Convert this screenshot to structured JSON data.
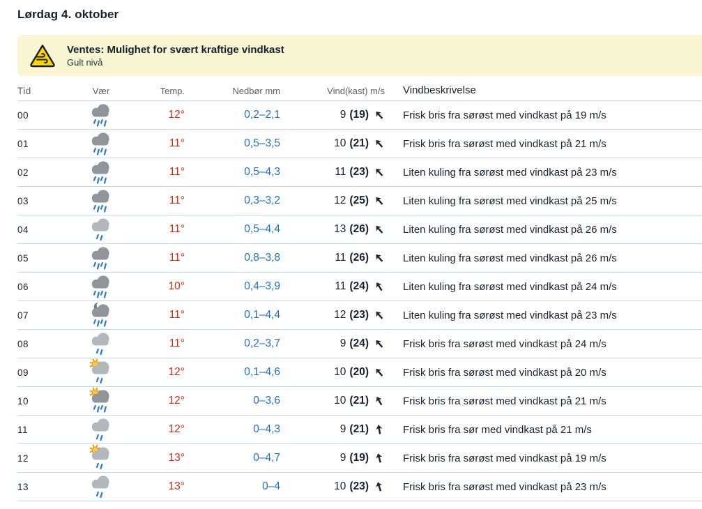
{
  "page": {
    "title": "Lørdag 4. oktober"
  },
  "warning": {
    "title": "Ventes: Mulighet for svært kraftige vindkast",
    "level": "Gult nivå",
    "icon": "wind-warning-icon",
    "colors": {
      "background": "#f9f6d3",
      "triangle": "#ffd500"
    }
  },
  "table": {
    "headers": {
      "time": "Tid",
      "weather": "Vær",
      "temp": "Temp.",
      "precip": "Nedbør mm",
      "wind": "Vind(kast) m/s",
      "desc": "Vindbeskrivelse"
    },
    "rows": [
      {
        "time": "00",
        "icon": {
          "name": "rain-cloud-icon",
          "sun": false,
          "moon": false,
          "shade": "dark",
          "rain": "heavy"
        },
        "temp": "12°",
        "precip": "0,2–2,1",
        "wind": "9",
        "gust": "(19)",
        "arrow_deg": -42,
        "desc": "Frisk bris fra sørøst med vindkast på 19 m/s"
      },
      {
        "time": "01",
        "icon": {
          "name": "rain-cloud-icon",
          "sun": false,
          "moon": false,
          "shade": "dark",
          "rain": "heavy"
        },
        "temp": "11°",
        "precip": "0,5–3,5",
        "wind": "10",
        "gust": "(21)",
        "arrow_deg": -42,
        "desc": "Frisk bris fra sørøst med vindkast på 21 m/s"
      },
      {
        "time": "02",
        "icon": {
          "name": "rain-cloud-icon",
          "sun": false,
          "moon": false,
          "shade": "dark",
          "rain": "heavy"
        },
        "temp": "11°",
        "precip": "0,5–4,3",
        "wind": "11",
        "gust": "(23)",
        "arrow_deg": -42,
        "desc": "Liten kuling fra sørøst med vindkast på 23 m/s"
      },
      {
        "time": "03",
        "icon": {
          "name": "rain-cloud-icon",
          "sun": false,
          "moon": false,
          "shade": "dark",
          "rain": "heavy"
        },
        "temp": "11°",
        "precip": "0,3–3,2",
        "wind": "12",
        "gust": "(25)",
        "arrow_deg": -42,
        "desc": "Liten kuling fra sørøst med vindkast på 25 m/s"
      },
      {
        "time": "04",
        "icon": {
          "name": "light-rain-cloud-icon",
          "sun": false,
          "moon": false,
          "shade": "light",
          "rain": "light"
        },
        "temp": "11°",
        "precip": "0,5–4,4",
        "wind": "13",
        "gust": "(26)",
        "arrow_deg": -42,
        "desc": "Liten kuling fra sørøst med vindkast på 26 m/s"
      },
      {
        "time": "05",
        "icon": {
          "name": "rain-cloud-icon",
          "sun": false,
          "moon": false,
          "shade": "dark",
          "rain": "heavy"
        },
        "temp": "11°",
        "precip": "0,8–3,8",
        "wind": "11",
        "gust": "(26)",
        "arrow_deg": -42,
        "desc": "Liten kuling fra sørøst med vindkast på 26 m/s"
      },
      {
        "time": "06",
        "icon": {
          "name": "rain-cloud-icon",
          "sun": false,
          "moon": false,
          "shade": "dark",
          "rain": "heavy"
        },
        "temp": "10°",
        "precip": "0,4–3,9",
        "wind": "11",
        "gust": "(24)",
        "arrow_deg": -33,
        "desc": "Liten kuling fra sørøst med vindkast på 24 m/s"
      },
      {
        "time": "07",
        "icon": {
          "name": "rain-cloud-night-icon",
          "sun": false,
          "moon": true,
          "shade": "dark",
          "rain": "heavy"
        },
        "temp": "11°",
        "precip": "0,1–4,4",
        "wind": "12",
        "gust": "(23)",
        "arrow_deg": -42,
        "desc": "Liten kuling fra sørøst med vindkast på 23 m/s"
      },
      {
        "time": "08",
        "icon": {
          "name": "light-rain-cloud-icon",
          "sun": false,
          "moon": false,
          "shade": "light",
          "rain": "light"
        },
        "temp": "11°",
        "precip": "0,2–3,7",
        "wind": "9",
        "gust": "(24)",
        "arrow_deg": -42,
        "desc": "Frisk bris fra sørøst med vindkast på 24 m/s"
      },
      {
        "time": "09",
        "icon": {
          "name": "sun-cloud-light-rain-icon",
          "sun": true,
          "moon": false,
          "shade": "light",
          "rain": "light"
        },
        "temp": "12°",
        "precip": "0,1–4,6",
        "wind": "10",
        "gust": "(20)",
        "arrow_deg": -40,
        "desc": "Frisk bris fra sørøst med vindkast på 20 m/s"
      },
      {
        "time": "10",
        "icon": {
          "name": "sun-cloud-rain-icon",
          "sun": true,
          "moon": false,
          "shade": "dark",
          "rain": "heavy"
        },
        "temp": "12°",
        "precip": "0–3,6",
        "wind": "10",
        "gust": "(21)",
        "arrow_deg": -30,
        "desc": "Frisk bris fra sørøst med vindkast på 21 m/s"
      },
      {
        "time": "11",
        "icon": {
          "name": "light-rain-cloud-icon",
          "sun": false,
          "moon": false,
          "shade": "light",
          "rain": "light"
        },
        "temp": "12°",
        "precip": "0–4,3",
        "wind": "9",
        "gust": "(21)",
        "arrow_deg": -10,
        "desc": "Frisk bris fra sør med vindkast på 21 m/s"
      },
      {
        "time": "12",
        "icon": {
          "name": "sun-cloud-light-rain-icon",
          "sun": true,
          "moon": false,
          "shade": "light",
          "rain": "light"
        },
        "temp": "13°",
        "precip": "0–4,7",
        "wind": "9",
        "gust": "(19)",
        "arrow_deg": -15,
        "desc": "Frisk bris fra sørøst med vindkast på 19 m/s"
      },
      {
        "time": "13",
        "icon": {
          "name": "light-rain-cloud-icon",
          "sun": false,
          "moon": false,
          "shade": "light",
          "rain": "light"
        },
        "temp": "13°",
        "precip": "0–4",
        "wind": "10",
        "gust": "(23)",
        "arrow_deg": -18,
        "desc": "Frisk bris fra sørøst med vindkast på 23 m/s"
      }
    ]
  },
  "colors": {
    "temperature": "#cc2b12",
    "precipitation": "#1d6fc4",
    "text": "#18222e",
    "muted": "#56616c",
    "divider": "#bedaf2",
    "warning_background": "#f9f6d3"
  }
}
